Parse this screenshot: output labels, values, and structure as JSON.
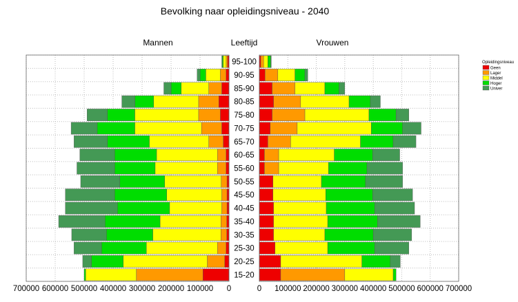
{
  "chart_data": {
    "type": "bar",
    "subtype": "population-pyramid (stacked horizontal bars)",
    "title": "Bevolking naar opleidingsniveau - 2040",
    "left_label": "Mannen",
    "center_label": "Leeftijd",
    "right_label": "Vrouwen",
    "categories": [
      "15-20",
      "20-25",
      "25-30",
      "30-35",
      "35-40",
      "40-45",
      "45-50",
      "50-55",
      "55-60",
      "60-65",
      "65-70",
      "70-75",
      "75-80",
      "80-85",
      "85-90",
      "90-95",
      "95-100"
    ],
    "legend": {
      "title": "Opleidingsniveau",
      "placement": "right",
      "items": [
        {
          "key": "geen",
          "label": "Geen",
          "color": "#ee0000"
        },
        {
          "key": "lager",
          "label": "Lager",
          "color": "#ff9900"
        },
        {
          "key": "middel",
          "label": "Middel",
          "color": "#ffff00"
        },
        {
          "key": "hoger",
          "label": "Hoger",
          "color": "#00dd00"
        },
        {
          "key": "univer",
          "label": "Univer",
          "color": "#449955"
        }
      ]
    },
    "x_axis": {
      "range": [
        0,
        700000
      ],
      "left_ticks": [
        "700000",
        "600000",
        "500000",
        "400000",
        "300000",
        "200000",
        "100000",
        "0"
      ],
      "right_ticks": [
        "0",
        "100000",
        "200000",
        "300000",
        "400000",
        "500000",
        "600000",
        "700000"
      ],
      "tick_values": [
        700000,
        600000,
        500000,
        400000,
        300000,
        200000,
        100000,
        0
      ]
    },
    "men": {
      "geen": [
        90000,
        15000,
        10000,
        8000,
        8000,
        7000,
        7000,
        7000,
        10000,
        10000,
        20000,
        25000,
        30000,
        35000,
        25000,
        10000,
        5000
      ],
      "lager": [
        230000,
        60000,
        30000,
        20000,
        20000,
        18000,
        18000,
        20000,
        30000,
        30000,
        50000,
        70000,
        75000,
        70000,
        45000,
        20000,
        5000
      ],
      "middel": [
        175000,
        290000,
        245000,
        235000,
        210000,
        180000,
        190000,
        195000,
        215000,
        210000,
        205000,
        230000,
        220000,
        155000,
        95000,
        50000,
        10000
      ],
      "hoger": [
        5000,
        110000,
        155000,
        160000,
        190000,
        180000,
        180000,
        155000,
        140000,
        145000,
        145000,
        130000,
        95000,
        65000,
        35000,
        20000,
        3000
      ],
      "univer": [
        0,
        30000,
        95000,
        120000,
        160000,
        180000,
        170000,
        135000,
        130000,
        120000,
        115000,
        90000,
        70000,
        45000,
        25000,
        10000,
        2000
      ]
    },
    "women": {
      "geen": [
        75000,
        75000,
        55000,
        50000,
        50000,
        50000,
        48000,
        48000,
        18000,
        18000,
        30000,
        38000,
        45000,
        50000,
        45000,
        20000,
        5000
      ],
      "lager": [
        225000,
        0,
        0,
        0,
        0,
        0,
        0,
        0,
        50000,
        50000,
        80000,
        95000,
        115000,
        95000,
        80000,
        45000,
        10000
      ],
      "middel": [
        170000,
        285000,
        185000,
        180000,
        190000,
        185000,
        185000,
        170000,
        175000,
        195000,
        245000,
        260000,
        225000,
        170000,
        105000,
        60000,
        15000
      ],
      "hoger": [
        10000,
        100000,
        165000,
        170000,
        175000,
        170000,
        165000,
        155000,
        135000,
        135000,
        115000,
        110000,
        95000,
        75000,
        50000,
        35000,
        10000
      ],
      "univer": [
        0,
        35000,
        120000,
        135000,
        150000,
        140000,
        140000,
        130000,
        125000,
        95000,
        80000,
        65000,
        45000,
        35000,
        20000,
        10000,
        2000
      ]
    },
    "grid": true
  }
}
